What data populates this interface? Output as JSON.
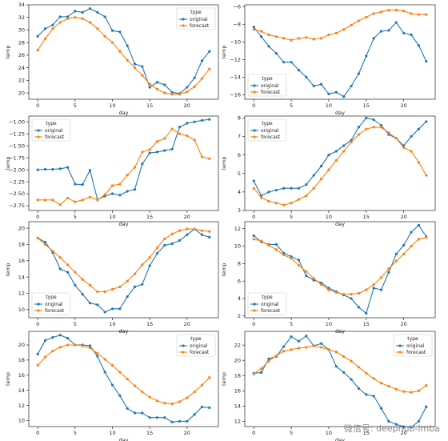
{
  "watermark": "微信号: deephub-imba",
  "colors": {
    "original": "#1f77b4",
    "forecast": "#ff7f0e",
    "axis": "#000000"
  },
  "chart_data": [
    {
      "type": "line",
      "xlabel": "day",
      "ylabel": "temp",
      "xlim": [
        -1.2,
        24.2
      ],
      "ylim": [
        19,
        34
      ],
      "xticks": [
        0,
        5,
        10,
        15,
        20
      ],
      "yticks": [
        20,
        22,
        24,
        26,
        28,
        30,
        32,
        34
      ],
      "ytick_labels": [
        "20",
        "22",
        "24",
        "26",
        "28",
        "30",
        "32",
        "34"
      ],
      "legend": {
        "title": "type",
        "position": "top-right"
      },
      "x": [
        0,
        1,
        2,
        3,
        4,
        5,
        6,
        7,
        8,
        9,
        10,
        11,
        12,
        13,
        14,
        15,
        16,
        17,
        18,
        19,
        20,
        21,
        22,
        23
      ],
      "series": [
        {
          "name": "original",
          "values": [
            29.0,
            30.2,
            30.8,
            32.1,
            32.1,
            33.0,
            32.8,
            33.4,
            32.8,
            32.1,
            29.9,
            29.7,
            27.5,
            24.6,
            24.2,
            20.9,
            21.7,
            21.3,
            20.1,
            19.9,
            20.9,
            22.4,
            25.1,
            26.6
          ]
        },
        {
          "name": "forecast",
          "values": [
            26.8,
            28.6,
            30.2,
            31.2,
            31.8,
            32.0,
            31.8,
            31.2,
            30.2,
            29.0,
            28.0,
            26.6,
            25.2,
            24.0,
            22.8,
            21.4,
            20.6,
            20.0,
            19.8,
            19.8,
            20.2,
            21.0,
            22.3,
            23.8
          ]
        }
      ]
    },
    {
      "type": "line",
      "xlabel": "day",
      "ylabel": "temp",
      "xlim": [
        -1.2,
        24.2
      ],
      "ylim": [
        -16.5,
        -5.8
      ],
      "xticks": [
        0,
        5,
        10,
        15,
        20
      ],
      "yticks": [
        -16,
        -14,
        -12,
        -10,
        -8,
        -6
      ],
      "ytick_labels": [
        "−16",
        "−14",
        "−12",
        "−10",
        "−8",
        "−6"
      ],
      "legend": {
        "title": "type",
        "position": "bottom-left"
      },
      "x": [
        0,
        1,
        2,
        3,
        4,
        5,
        6,
        7,
        8,
        9,
        10,
        11,
        12,
        13,
        14,
        15,
        16,
        17,
        18,
        19,
        20,
        21,
        22,
        23
      ],
      "series": [
        {
          "name": "original",
          "values": [
            -8.3,
            -9.4,
            -10.5,
            -11.3,
            -12.3,
            -12.3,
            -13.2,
            -14.0,
            -15.0,
            -14.8,
            -15.9,
            -15.7,
            -16.2,
            -15.0,
            -13.6,
            -11.6,
            -9.6,
            -8.8,
            -8.7,
            -7.8,
            -9.0,
            -9.2,
            -10.4,
            -12.2
          ]
        },
        {
          "name": "forecast",
          "values": [
            -8.6,
            -8.8,
            -9.2,
            -9.4,
            -9.6,
            -9.8,
            -9.6,
            -9.5,
            -9.7,
            -9.6,
            -9.2,
            -9.0,
            -8.6,
            -8.1,
            -7.6,
            -7.2,
            -6.8,
            -6.6,
            -6.4,
            -6.4,
            -6.5,
            -6.8,
            -6.9,
            -6.9
          ]
        }
      ]
    },
    {
      "type": "line",
      "xlabel": "day",
      "ylabel": "temp",
      "xlim": [
        -1.2,
        24.2
      ],
      "ylim": [
        -2.85,
        -0.88
      ],
      "xticks": [
        0,
        5,
        10,
        15,
        20
      ],
      "yticks": [
        -2.75,
        -2.5,
        -2.25,
        -2.0,
        -1.75,
        -1.5,
        -1.25,
        -1.0
      ],
      "ytick_labels": [
        "−2.75",
        "−2.50",
        "−2.25",
        "−2.00",
        "−1.75",
        "−1.50",
        "−1.25",
        "−1.00"
      ],
      "legend": {
        "title": "type",
        "position": "top-left"
      },
      "x": [
        0,
        1,
        2,
        3,
        4,
        5,
        6,
        7,
        8,
        9,
        10,
        11,
        12,
        13,
        14,
        15,
        16,
        17,
        18,
        19,
        20,
        21,
        22,
        23
      ],
      "series": [
        {
          "name": "original",
          "values": [
            -2.0,
            -1.99,
            -1.99,
            -1.98,
            -1.95,
            -2.3,
            -2.31,
            -2.01,
            -2.62,
            -2.55,
            -2.5,
            -2.53,
            -2.45,
            -2.41,
            -1.88,
            -1.65,
            -1.63,
            -1.6,
            -1.57,
            -1.11,
            -1.03,
            -1.0,
            -0.97,
            -0.95
          ]
        },
        {
          "name": "forecast",
          "values": [
            -2.63,
            -2.63,
            -2.63,
            -2.73,
            -2.59,
            -2.67,
            -2.63,
            -2.57,
            -2.63,
            -2.52,
            -2.33,
            -2.3,
            -2.11,
            -1.95,
            -1.63,
            -1.58,
            -1.41,
            -1.35,
            -1.15,
            -1.25,
            -1.29,
            -1.38,
            -1.73,
            -1.77
          ]
        }
      ]
    },
    {
      "type": "line",
      "xlabel": "day",
      "ylabel": "temp",
      "xlim": [
        -1.2,
        24.2
      ],
      "ylim": [
        3.0,
        8.1
      ],
      "xticks": [
        0,
        5,
        10,
        15,
        20
      ],
      "yticks": [
        3,
        4,
        5,
        6,
        7,
        8
      ],
      "ytick_labels": [
        "3",
        "4",
        "5",
        "6",
        "7",
        "8"
      ],
      "legend": {
        "title": "type",
        "position": "top-left"
      },
      "x": [
        0,
        1,
        2,
        3,
        4,
        5,
        6,
        7,
        8,
        9,
        10,
        11,
        12,
        13,
        14,
        15,
        16,
        17,
        18,
        19,
        20,
        21,
        22,
        23
      ],
      "series": [
        {
          "name": "original",
          "values": [
            4.6,
            3.8,
            4.0,
            4.1,
            4.2,
            4.2,
            4.2,
            4.4,
            4.9,
            5.4,
            6.0,
            6.2,
            6.5,
            6.8,
            7.5,
            8.0,
            7.9,
            7.6,
            7.1,
            6.9,
            6.5,
            7.0,
            7.4,
            7.8
          ]
        },
        {
          "name": "forecast",
          "values": [
            4.2,
            3.7,
            3.5,
            3.4,
            3.3,
            3.4,
            3.6,
            3.8,
            4.2,
            4.7,
            5.2,
            5.7,
            6.2,
            6.7,
            7.1,
            7.4,
            7.5,
            7.5,
            7.2,
            6.9,
            6.4,
            6.2,
            5.6,
            4.9
          ]
        }
      ]
    },
    {
      "type": "line",
      "xlabel": "day",
      "ylabel": "temp",
      "xlim": [
        -1.2,
        24.2
      ],
      "ylim": [
        9.0,
        20.8
      ],
      "xticks": [
        0,
        5,
        10,
        15,
        20
      ],
      "yticks": [
        10,
        12,
        14,
        16,
        18,
        20
      ],
      "ytick_labels": [
        "10",
        "12",
        "14",
        "16",
        "18",
        "20"
      ],
      "legend": {
        "title": "type",
        "position": "bottom-left"
      },
      "x": [
        0,
        1,
        2,
        3,
        4,
        5,
        6,
        7,
        8,
        9,
        10,
        11,
        12,
        13,
        14,
        15,
        16,
        17,
        18,
        19,
        20,
        21,
        22,
        23
      ],
      "series": [
        {
          "name": "original",
          "values": [
            18.8,
            18.3,
            17.0,
            15.0,
            14.6,
            13.0,
            11.9,
            10.8,
            10.6,
            9.7,
            10.1,
            10.1,
            11.6,
            12.8,
            13.1,
            15.4,
            16.9,
            17.9,
            18.1,
            18.5,
            19.2,
            19.9,
            19.2,
            18.9
          ]
        },
        {
          "name": "forecast",
          "values": [
            18.8,
            18.0,
            17.2,
            16.4,
            15.5,
            14.6,
            13.7,
            13.0,
            12.2,
            12.2,
            12.5,
            12.8,
            13.5,
            14.4,
            15.5,
            16.4,
            17.6,
            18.7,
            19.3,
            19.7,
            19.9,
            19.9,
            19.7,
            19.6
          ]
        }
      ]
    },
    {
      "type": "line",
      "xlabel": "day",
      "ylabel": "temp",
      "xlim": [
        -1.2,
        24.2
      ],
      "ylim": [
        1.8,
        12.8
      ],
      "xticks": [
        0,
        5,
        10,
        15,
        20
      ],
      "yticks": [
        2,
        4,
        6,
        8,
        10,
        12
      ],
      "ytick_labels": [
        "2",
        "4",
        "6",
        "8",
        "10",
        "12"
      ],
      "legend": {
        "title": "type",
        "position": "bottom-left"
      },
      "x": [
        0,
        1,
        2,
        3,
        4,
        5,
        6,
        7,
        8,
        9,
        10,
        11,
        12,
        13,
        14,
        15,
        16,
        17,
        18,
        19,
        20,
        21,
        22,
        23
      ],
      "series": [
        {
          "name": "original",
          "values": [
            11.2,
            10.5,
            10.2,
            10.2,
            9.2,
            8.8,
            8.4,
            6.6,
            6.1,
            5.8,
            5.2,
            4.8,
            4.4,
            4.0,
            3.0,
            2.3,
            5.2,
            5.0,
            7.0,
            9.1,
            10.1,
            11.6,
            12.4,
            11.1
          ]
        },
        {
          "name": "forecast",
          "values": [
            10.8,
            10.6,
            10.1,
            9.6,
            9.0,
            8.6,
            7.8,
            7.1,
            6.3,
            5.6,
            5.0,
            4.7,
            4.5,
            4.5,
            4.6,
            5.0,
            5.6,
            6.4,
            7.4,
            8.3,
            9.1,
            10.0,
            10.8,
            11.0
          ]
        }
      ]
    },
    {
      "type": "line",
      "xlabel": "day",
      "ylabel": "temp",
      "xlim": [
        -1.2,
        24.2
      ],
      "ylim": [
        9.2,
        21.8
      ],
      "xticks": [
        0,
        5,
        10,
        15,
        20
      ],
      "yticks": [
        10,
        12,
        14,
        16,
        18,
        20
      ],
      "ytick_labels": [
        "10",
        "12",
        "14",
        "16",
        "18",
        "20"
      ],
      "legend": {
        "title": "type",
        "position": "top-right"
      },
      "x": [
        0,
        1,
        2,
        3,
        4,
        5,
        6,
        7,
        8,
        9,
        10,
        11,
        12,
        13,
        14,
        15,
        16,
        17,
        18,
        19,
        20,
        21,
        22,
        23
      ],
      "series": [
        {
          "name": "original",
          "values": [
            18.8,
            20.6,
            21.0,
            21.3,
            20.9,
            20.0,
            20.0,
            19.9,
            18.5,
            16.4,
            14.7,
            13.3,
            11.6,
            11.0,
            11.0,
            10.4,
            10.4,
            10.4,
            9.8,
            9.9,
            9.9,
            10.8,
            11.8,
            11.7
          ]
        },
        {
          "name": "forecast",
          "values": [
            17.3,
            18.4,
            19.2,
            19.7,
            20.0,
            20.0,
            19.9,
            19.6,
            18.9,
            18.1,
            17.3,
            16.4,
            15.5,
            14.6,
            13.8,
            13.1,
            12.6,
            12.3,
            12.2,
            12.5,
            13.0,
            13.8,
            14.7,
            15.7
          ]
        }
      ]
    },
    {
      "type": "line",
      "xlabel": "day",
      "ylabel": "temp",
      "xlim": [
        -1.2,
        24.2
      ],
      "ylim": [
        11.3,
        23.8
      ],
      "xticks": [
        0,
        5,
        10,
        15,
        20
      ],
      "yticks": [
        12,
        14,
        16,
        18,
        20,
        22
      ],
      "ytick_labels": [
        "12",
        "14",
        "16",
        "18",
        "20",
        "22"
      ],
      "legend": {
        "title": "type",
        "position": "top-right"
      },
      "x": [
        0,
        1,
        2,
        3,
        4,
        5,
        6,
        7,
        8,
        9,
        10,
        11,
        12,
        13,
        14,
        15,
        16,
        17,
        18,
        19,
        20,
        21,
        22,
        23
      ],
      "series": [
        {
          "name": "original",
          "values": [
            18.3,
            18.4,
            20.2,
            20.5,
            21.8,
            23.1,
            22.5,
            23.2,
            21.9,
            22.2,
            21.4,
            19.2,
            18.4,
            17.5,
            16.3,
            15.5,
            15.3,
            13.7,
            12.0,
            11.6,
            11.3,
            11.2,
            12.0,
            13.9
          ]
        },
        {
          "name": "forecast",
          "values": [
            18.2,
            18.9,
            19.9,
            20.6,
            21.2,
            21.4,
            21.6,
            21.7,
            21.9,
            21.7,
            21.4,
            21.1,
            20.5,
            19.9,
            19.1,
            18.3,
            17.6,
            17.0,
            16.6,
            16.2,
            15.9,
            15.8,
            16.0,
            16.7
          ]
        }
      ]
    }
  ]
}
